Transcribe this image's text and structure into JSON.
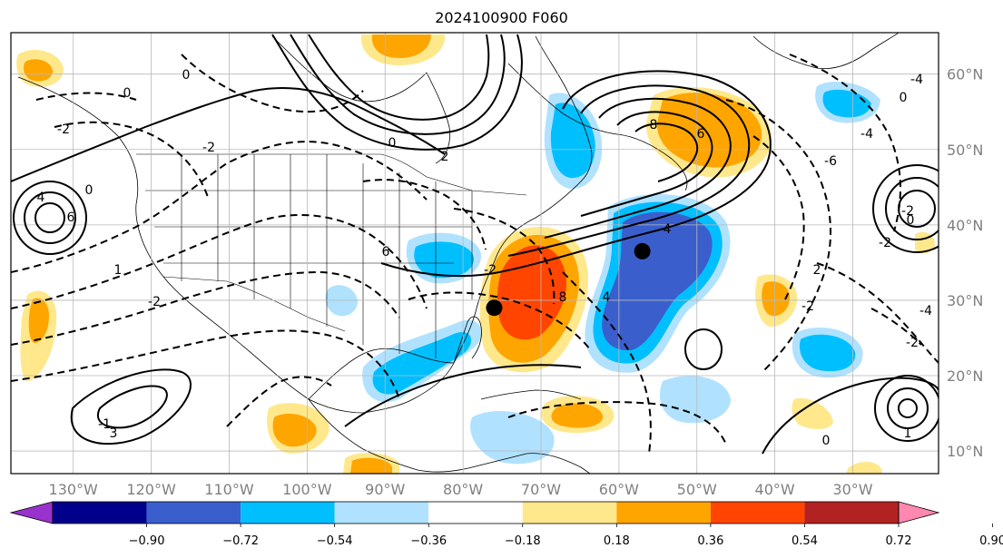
{
  "title": "2024100900 F060",
  "map": {
    "lon_labels": [
      "130°W",
      "120°W",
      "110°W",
      "100°W",
      "90°W",
      "80°W",
      "70°W",
      "60°W",
      "50°W",
      "40°W",
      "30°W"
    ],
    "lat_labels": [
      "60°N",
      "50°N",
      "40°N",
      "30°N",
      "20°N",
      "10°N"
    ],
    "markers": [
      {
        "name": "low-center-a",
        "lon": -76.0,
        "lat": 29.0
      },
      {
        "name": "low-center-b",
        "lon": -57.0,
        "lat": 36.5
      }
    ],
    "contour_labels": [
      "4",
      "6",
      "0",
      "0",
      "-2",
      "-2",
      "0",
      "0",
      "2",
      "-2",
      "4",
      "6",
      "8",
      "-6",
      "2",
      "-4",
      "0",
      "-2",
      "-2",
      "0",
      "-4",
      "-2",
      "-4",
      "1",
      "0",
      "-2",
      "6",
      "8",
      "4",
      "-2",
      "3",
      "1",
      "-1"
    ]
  },
  "colorbar": {
    "levels": [
      "−0.90",
      "−0.72",
      "−0.54",
      "−0.36",
      "−0.18",
      "0.18",
      "0.36",
      "0.54",
      "0.72",
      "0.90"
    ],
    "colors": [
      "#9932cc",
      "#00008b",
      "#3a5fcd",
      "#00bfff",
      "#b0e2ff",
      "#ffffff",
      "#ffe88c",
      "#ffa500",
      "#ff4500",
      "#b22222",
      "#ff88b0"
    ]
  }
}
